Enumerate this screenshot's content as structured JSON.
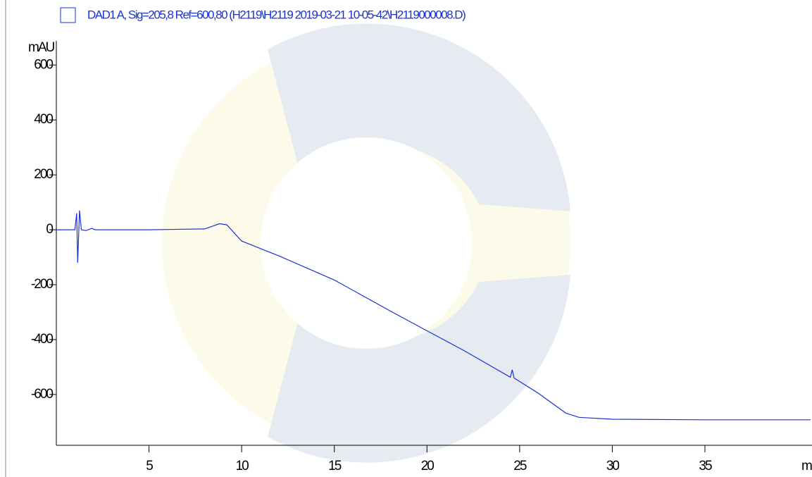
{
  "chart_data": {
    "type": "line",
    "legend_label": "DAD1 A, Sig=205,8 Ref=600,80 (H2119\\H2119 2019-03-21 10-05-42\\H2119000008.D)",
    "y_label": "mAU",
    "x_label": "mi",
    "x": [
      0,
      1.0,
      1.1,
      1.15,
      1.25,
      1.35,
      1.6,
      1.9,
      2.1,
      5,
      8,
      8.5,
      8.8,
      9.2,
      10,
      12,
      15,
      18,
      20,
      22,
      24.5,
      24.6,
      24.7,
      26,
      27.5,
      28.2,
      30,
      35,
      40.7
    ],
    "series": [
      {
        "name": "DAD1 A, Sig=205,8 Ref=600,80 (H2119\\H2119 2019-03-21 10-05-42\\H2119000008.D)",
        "color": "#1a33d6",
        "values": [
          0,
          0,
          60,
          -120,
          70,
          0,
          -3,
          5,
          0,
          0,
          3,
          15,
          22,
          18,
          -41,
          -95,
          -183,
          -295,
          -368,
          -440,
          -537,
          -510,
          -540,
          -595,
          -668,
          -683,
          -690,
          -692,
          -692
        ]
      }
    ],
    "xlim": [
      0,
      40.7
    ],
    "xticks": [
      5,
      10,
      15,
      20,
      25,
      30,
      35
    ],
    "ylim": [
      -785,
      688
    ],
    "yticks": [
      600,
      400,
      200,
      0,
      -200,
      -400,
      -600
    ]
  }
}
